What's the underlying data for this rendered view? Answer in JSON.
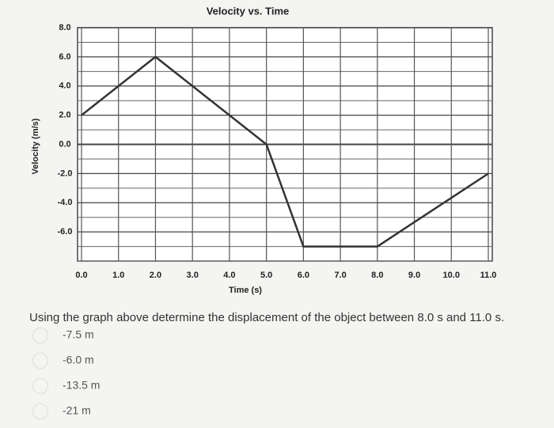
{
  "chart_data": {
    "type": "line",
    "title": "Velocity vs. Time",
    "x_label": "Time (s)",
    "y_label": "Velocity (m/s)",
    "x": [
      0,
      2,
      5,
      6,
      8,
      11
    ],
    "values": [
      2,
      6,
      0,
      -7,
      -7,
      -2
    ],
    "color": "#333333",
    "xlim": [
      0,
      11
    ],
    "xticks": [
      {
        "value": 0,
        "label": "0.0"
      },
      {
        "value": 1,
        "label": "1.0"
      },
      {
        "value": 2,
        "label": "2.0"
      },
      {
        "value": 3,
        "label": "3.0"
      },
      {
        "value": 4,
        "label": "4.0"
      },
      {
        "value": 5,
        "label": "5.0"
      },
      {
        "value": 6,
        "label": "6.0"
      },
      {
        "value": 7,
        "label": "7.0"
      },
      {
        "value": 8,
        "label": "8.0"
      },
      {
        "value": 9,
        "label": "9.0"
      },
      {
        "value": 10,
        "label": "10.0"
      },
      {
        "value": 11,
        "label": "11.0"
      }
    ],
    "ylim": [
      -8,
      8
    ],
    "yticks": [
      {
        "value": -6,
        "label": "-6.0"
      },
      {
        "value": -4,
        "label": "-4.0"
      },
      {
        "value": -2,
        "label": "-2.0"
      },
      {
        "value": 0,
        "label": "0.0"
      },
      {
        "value": 2,
        "label": "2.0"
      },
      {
        "value": 4,
        "label": "4.0"
      },
      {
        "value": 6,
        "label": "6.0"
      },
      {
        "value": 8,
        "label": "8.0"
      }
    ],
    "grid": true
  },
  "question": {
    "text": "Using the graph above determine the displacement of the object between 8.0 s and 11.0 s.",
    "options": [
      "-7.5 m",
      "-6.0 m",
      "-13.5 m",
      "-21 m"
    ]
  }
}
